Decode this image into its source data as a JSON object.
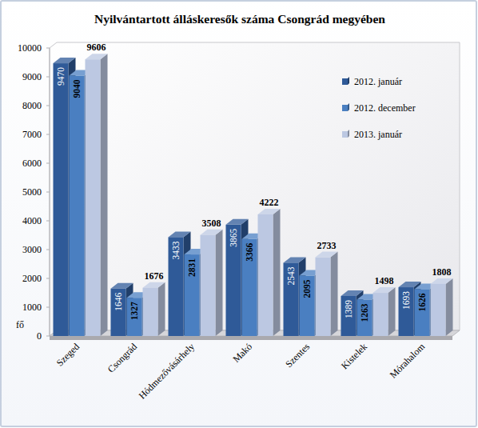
{
  "chart_data": {
    "type": "bar",
    "title": "Nyilvántartott álláskeresők száma Csongrád megyében",
    "y_label": "fő",
    "categories": [
      "Szeged",
      "Csongrád",
      "Hódmezővásárhely",
      "Makó",
      "Szentes",
      "Kistelek",
      "Mórahalom"
    ],
    "series": [
      {
        "name": "2012. január",
        "color": "#2f5a98",
        "values": [
          9470,
          1646,
          3433,
          3865,
          2543,
          1389,
          1693
        ]
      },
      {
        "name": "2012. december",
        "color": "#4a7fc1",
        "values": [
          9040,
          1327,
          2831,
          3366,
          2095,
          1263,
          1626
        ]
      },
      {
        "name": "2013. január",
        "color": "#bcc8e2",
        "values": [
          9606,
          1676,
          3508,
          4222,
          2733,
          1498,
          1808
        ]
      }
    ],
    "ylim": [
      0,
      10000
    ],
    "yticks": [
      0,
      1000,
      2000,
      3000,
      4000,
      5000,
      6000,
      7000,
      8000,
      9000,
      10000
    ],
    "grid": false,
    "data_labels": true,
    "legend": "top-right"
  }
}
